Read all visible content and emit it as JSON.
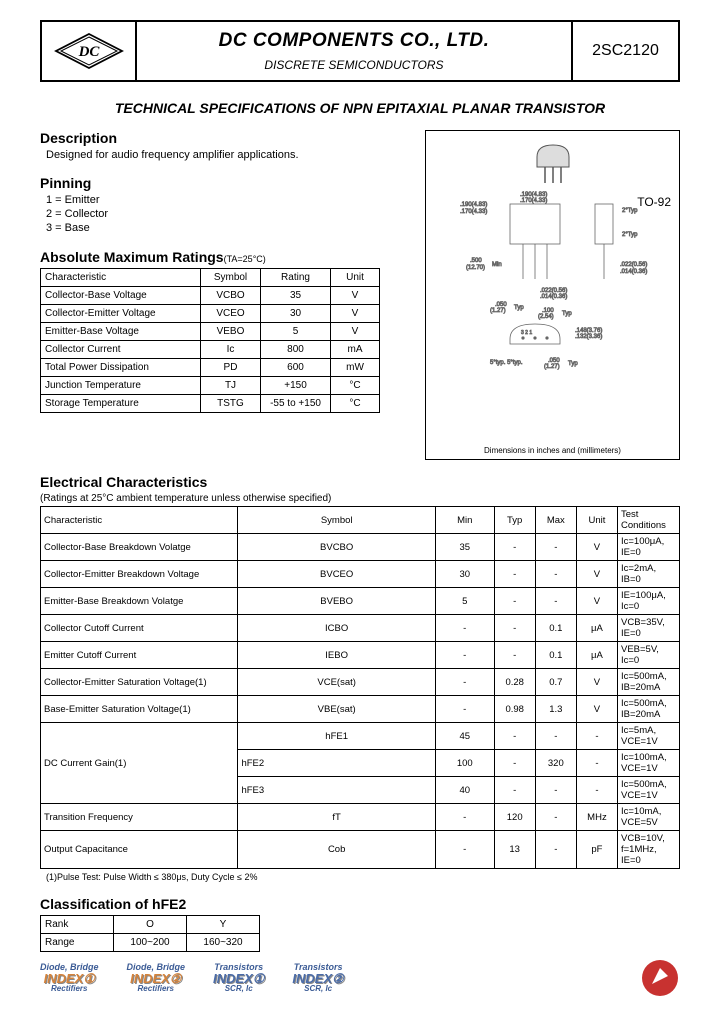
{
  "header": {
    "company": "DC COMPONENTS CO., LTD.",
    "subtitle": "DISCRETE SEMICONDUCTORS",
    "part": "2SC2120"
  },
  "spec_title": "TECHNICAL SPECIFICATIONS OF NPN EPITAXIAL PLANAR TRANSISTOR",
  "description": {
    "heading": "Description",
    "text": "Designed for audio frequency amplifier applications."
  },
  "pinning": {
    "heading": "Pinning",
    "pins": [
      "1 = Emitter",
      "2 = Collector",
      "3 = Base"
    ]
  },
  "package": {
    "label": "TO-92",
    "dim_note": "Dimensions in inches and (millimeters)"
  },
  "abs_max": {
    "heading": "Absolute Maximum Ratings",
    "note": "(TA=25°C)",
    "columns": [
      "Characteristic",
      "Symbol",
      "Rating",
      "Unit"
    ],
    "rows": [
      [
        "Collector-Base Voltage",
        "VCBO",
        "35",
        "V"
      ],
      [
        "Collector-Emitter Voltage",
        "VCEO",
        "30",
        "V"
      ],
      [
        "Emitter-Base Voltage",
        "VEBO",
        "5",
        "V"
      ],
      [
        "Collector Current",
        "Ic",
        "800",
        "mA"
      ],
      [
        "Total Power Dissipation",
        "PD",
        "600",
        "mW"
      ],
      [
        "Junction Temperature",
        "TJ",
        "+150",
        "°C"
      ],
      [
        "Storage Temperature",
        "TSTG",
        "-55 to +150",
        "°C"
      ]
    ]
  },
  "elec": {
    "heading": "Electrical Characteristics",
    "note": "(Ratings at 25°C ambient temperature unless otherwise specified)",
    "columns": [
      "Characteristic",
      "Symbol",
      "Min",
      "Typ",
      "Max",
      "Unit",
      "Test Conditions"
    ],
    "rows": [
      [
        "Collector-Base Breakdown Volatge",
        "BVCBO",
        "35",
        "-",
        "-",
        "V",
        "Ic=100μA, IE=0"
      ],
      [
        "Collector-Emitter Breakdown Voltage",
        "BVCEO",
        "30",
        "-",
        "-",
        "V",
        "Ic=2mA, IB=0"
      ],
      [
        "Emitter-Base Breakdown Volatge",
        "BVEBO",
        "5",
        "-",
        "-",
        "V",
        "IE=100μA, Ic=0"
      ],
      [
        "Collector Cutoff Current",
        "ICBO",
        "-",
        "-",
        "0.1",
        "μA",
        "VCB=35V, IE=0"
      ],
      [
        "Emitter Cutoff Current",
        "IEBO",
        "-",
        "-",
        "0.1",
        "μA",
        "VEB=5V, Ic=0"
      ],
      [
        "Collector-Emitter Saturation Voltage(1)",
        "VCE(sat)",
        "-",
        "0.28",
        "0.7",
        "V",
        "Ic=500mA, IB=20mA"
      ],
      [
        "Base-Emitter Saturation Voltage(1)",
        "VBE(sat)",
        "-",
        "0.98",
        "1.3",
        "V",
        "Ic=500mA, IB=20mA"
      ]
    ],
    "gain_label": "DC Current Gain(1)",
    "gain_rows": [
      [
        "hFE1",
        "45",
        "-",
        "-",
        "-",
        "Ic=5mA, VCE=1V"
      ],
      [
        "hFE2",
        "100",
        "-",
        "320",
        "-",
        "Ic=100mA, VCE=1V"
      ],
      [
        "hFE3",
        "40",
        "-",
        "-",
        "-",
        "Ic=500mA, VCE=1V"
      ]
    ],
    "more_rows": [
      [
        "Transition Frequency",
        "fT",
        "-",
        "120",
        "-",
        "MHz",
        "Ic=10mA, VCE=5V"
      ],
      [
        "Output Capacitance",
        "Cob",
        "-",
        "13",
        "-",
        "pF",
        "VCB=10V, f=1MHz, IE=0"
      ]
    ],
    "footnote": "(1)Pulse Test: Pulse Width ≤ 380μs, Duty Cycle ≤ 2%"
  },
  "classification": {
    "heading": "Classification of hFE2",
    "columns": [
      "Rank",
      "O",
      "Y"
    ],
    "rows": [
      [
        "Range",
        "100~200",
        "160~320"
      ]
    ]
  },
  "footer": {
    "links": [
      {
        "top": "Diode, Bridge",
        "bot": "INDEX①",
        "sub": "Rectifiers",
        "color": "orange"
      },
      {
        "top": "Diode, Bridge",
        "bot": "INDEX②",
        "sub": "Rectifiers",
        "color": "orange"
      },
      {
        "top": "Transistors",
        "bot": "INDEX①",
        "sub": "SCR, Ic",
        "color": "blue"
      },
      {
        "top": "Transistors",
        "bot": "INDEX②",
        "sub": "SCR, Ic",
        "color": "blue"
      }
    ]
  }
}
